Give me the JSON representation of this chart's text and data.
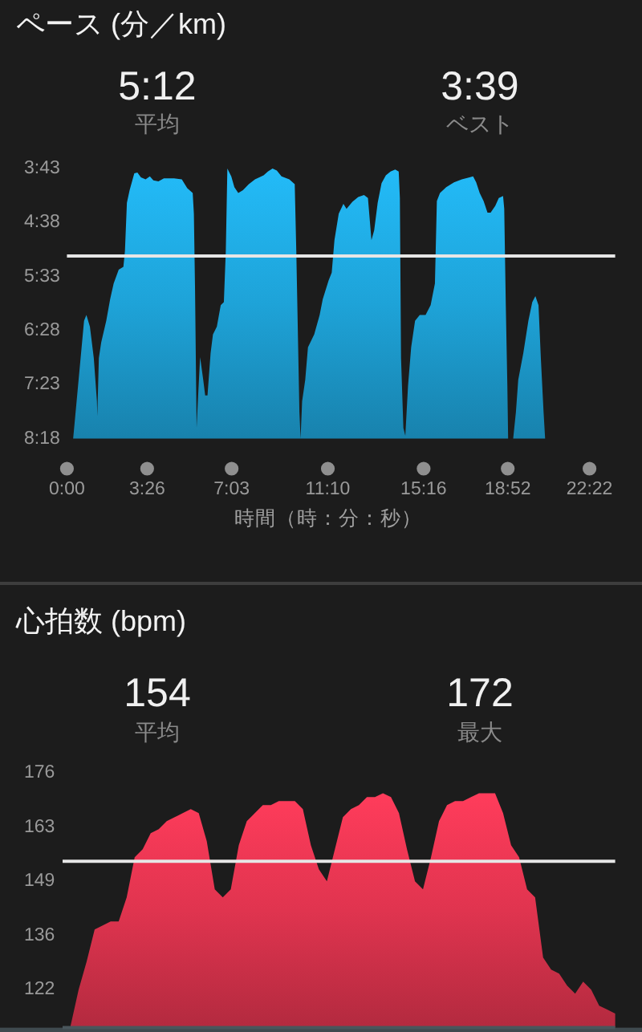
{
  "chart_data": [
    {
      "type": "area",
      "title": "ペース (分／km)",
      "annotations": [
        "5:12",
        "平均",
        "3:39",
        "ベスト"
      ],
      "xlabel": "時間（時：分：秒）",
      "x": [
        16,
        44,
        50,
        59,
        69,
        77,
        78,
        82,
        88,
        101,
        111,
        120,
        133,
        145,
        149,
        154,
        161,
        173,
        181,
        190,
        202,
        213,
        222,
        235,
        249,
        275,
        295,
        309,
        323,
        326,
        329,
        333,
        337,
        342,
        350,
        355,
        361,
        369,
        375,
        385,
        395,
        403,
        408,
        412,
        422,
        430,
        440,
        452,
        467,
        483,
        505,
        516,
        528,
        539,
        551,
        571,
        585,
        589,
        597,
        600,
        604,
        612,
        619,
        635,
        649,
        657,
        672,
        680,
        687,
        698,
        710,
        718,
        733,
        748,
        763,
        773,
        782,
        789,
        798,
        808,
        819,
        831,
        843,
        852,
        855,
        858,
        864,
        869,
        876,
        884,
        894,
        906,
        921,
        934,
        945,
        950,
        958,
        974,
        994,
        1014,
        1034,
        1043,
        1051,
        1060,
        1070,
        1080,
        1088,
        1100,
        1109,
        1120,
        1123,
        1127,
        1131,
        1133,
        1136,
        1146,
        1153,
        1159,
        1172,
        1185,
        1195,
        1203,
        1211,
        1217,
        1224,
        1228
      ],
      "values": [
        498,
        378,
        372,
        384,
        416,
        460,
        475,
        416,
        400,
        378,
        356,
        340,
        326,
        323,
        307,
        258,
        245,
        228,
        227,
        232,
        234,
        231,
        235,
        236,
        233,
        233,
        234,
        243,
        248,
        269,
        346,
        487,
        454,
        415,
        438,
        454,
        454,
        411,
        392,
        384,
        362,
        359,
        307,
        223,
        231,
        242,
        248,
        245,
        239,
        234,
        230,
        226,
        223,
        225,
        231,
        234,
        239,
        307,
        471,
        498,
        460,
        438,
        405,
        392,
        372,
        356,
        337,
        329,
        296,
        269,
        259,
        264,
        257,
        252,
        250,
        253,
        296,
        286,
        258,
        238,
        230,
        226,
        224,
        226,
        253,
        416,
        487,
        495,
        444,
        405,
        378,
        372,
        372,
        362,
        340,
        256,
        248,
        242,
        237,
        234,
        232,
        231,
        237,
        248,
        256,
        268,
        268,
        261,
        253,
        251,
        264,
        362,
        444,
        498,
        498,
        498,
        471,
        438,
        411,
        378,
        359,
        353,
        362,
        416,
        471,
        498
      ],
      "color": "#1ea3d8",
      "xlim": [
        0,
        1342
      ],
      "xticks": [
        {
          "value": 0,
          "label": "0:00"
        },
        {
          "value": 206,
          "label": "3:26"
        },
        {
          "value": 423,
          "label": "7:03"
        },
        {
          "value": 670,
          "label": "11:10"
        },
        {
          "value": 916,
          "label": "15:16"
        },
        {
          "value": 1132,
          "label": "18:52"
        },
        {
          "value": 1342,
          "label": "22:22"
        }
      ],
      "ylim": [
        498,
        223
      ],
      "yticks": [
        {
          "value": 223,
          "label": "3:43"
        },
        {
          "value": 278,
          "label": "4:38"
        },
        {
          "value": 333,
          "label": "5:33"
        },
        {
          "value": 388,
          "label": "6:28"
        },
        {
          "value": 443,
          "label": "7:23"
        },
        {
          "value": 498,
          "label": "8:18"
        }
      ],
      "ref_lines": [
        {
          "axis": "y",
          "value": 312,
          "color": "#e6e6e6"
        }
      ]
    },
    {
      "type": "area",
      "title": "心拍数 (bpm)",
      "annotations": [
        "154",
        "平均",
        "172",
        "最大"
      ],
      "categories": [
        null,
        null,
        null,
        null,
        null,
        null,
        null,
        null,
        null,
        null,
        null,
        null,
        null,
        null,
        null,
        null,
        null,
        null,
        null,
        null,
        null,
        null,
        null,
        null,
        null,
        null,
        null,
        null,
        null,
        null,
        null,
        null,
        null,
        null,
        null,
        null,
        null,
        null,
        null,
        null,
        null,
        null,
        null,
        null,
        null,
        null,
        null,
        null,
        null,
        null,
        null,
        null,
        null,
        null,
        null,
        null,
        null,
        null,
        null,
        null,
        null,
        null,
        null,
        null,
        null,
        null,
        null,
        null,
        null
      ],
      "values": [
        113,
        122,
        129,
        137,
        138,
        139,
        139,
        145,
        155,
        157,
        161,
        162,
        164,
        165,
        166,
        167,
        166,
        159,
        147,
        145,
        147,
        158,
        164,
        166,
        168,
        168,
        169,
        169,
        169,
        167,
        158,
        152,
        149,
        157,
        165,
        167,
        168,
        170,
        170,
        171,
        170,
        166,
        157,
        149,
        147,
        155,
        164,
        168,
        169,
        169,
        170,
        171,
        171,
        171,
        166,
        158,
        155,
        147,
        145,
        130,
        127,
        126,
        123,
        121,
        124,
        122,
        118,
        117,
        116
      ],
      "color": "#e0344f",
      "ylim": [
        112.5,
        176
      ],
      "yticks": [
        122,
        {
          "value": 135.5,
          "label": "136"
        },
        149,
        {
          "value": 162.5,
          "label": "163"
        },
        176
      ],
      "ref_lines": [
        {
          "axis": "y",
          "value": 154,
          "color": "#e6e6e6"
        }
      ],
      "tick_labels": "y"
    }
  ]
}
